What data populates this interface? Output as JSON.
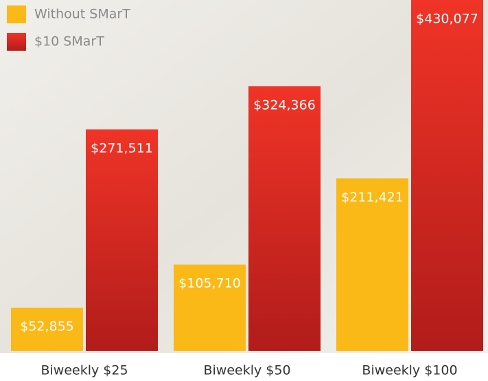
{
  "chart_data": {
    "type": "bar",
    "categories": [
      "Biweekly $25",
      "Biweekly $50",
      "Biweekly $100"
    ],
    "series": [
      {
        "name": "Without SMarT",
        "color": "#fbb917",
        "values": [
          52855,
          105710,
          211421
        ],
        "value_labels": [
          "$52,855",
          "$105,710",
          "$211,421"
        ]
      },
      {
        "name": "$10 SMarT",
        "color": "#f03427",
        "values": [
          271511,
          324366,
          430077
        ],
        "value_labels": [
          "$271,511",
          "$324,366",
          "$430,077"
        ]
      }
    ],
    "legend": "top-left"
  }
}
